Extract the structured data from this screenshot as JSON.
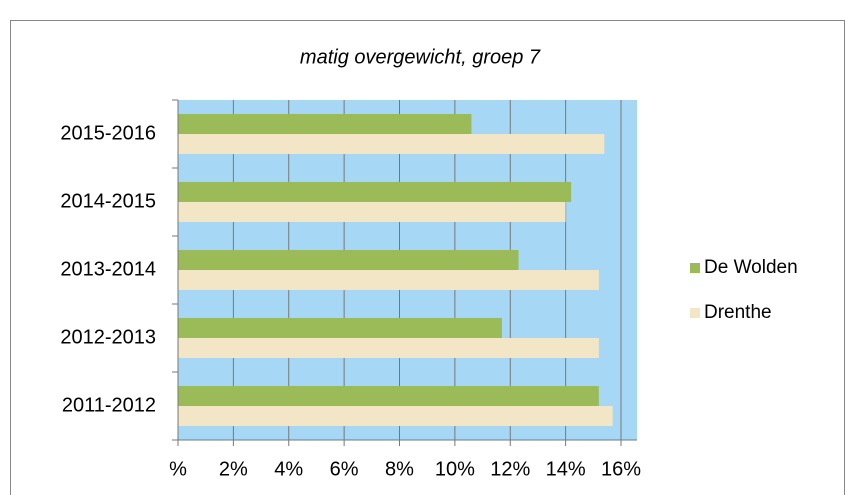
{
  "chart_data": {
    "type": "bar",
    "orientation": "horizontal",
    "title": "matig overgewicht, groep 7",
    "categories": [
      "2015-2016",
      "2014-2015",
      "2013-2014",
      "2012-2013",
      "2011-2012"
    ],
    "series": [
      {
        "name": "De Wolden",
        "color": "#9bbb59",
        "values": [
          10.6,
          14.2,
          12.3,
          11.7,
          15.2
        ]
      },
      {
        "name": "Drenthe",
        "color": "#f2e6c6",
        "values": [
          15.4,
          14.0,
          15.2,
          15.2,
          15.7
        ]
      }
    ],
    "xlim": [
      0,
      16
    ],
    "xticks": [
      {
        "value": 0,
        "label": "%"
      },
      {
        "value": 2,
        "label": "2%"
      },
      {
        "value": 4,
        "label": "4%"
      },
      {
        "value": 6,
        "label": "6%"
      },
      {
        "value": 8,
        "label": "8%"
      },
      {
        "value": 10,
        "label": "10%"
      },
      {
        "value": 12,
        "label": "12%"
      },
      {
        "value": 14,
        "label": "14%"
      },
      {
        "value": 16,
        "label": "16%"
      }
    ],
    "grid": true,
    "legend": "right",
    "plot_background": "#a6d8f5"
  }
}
